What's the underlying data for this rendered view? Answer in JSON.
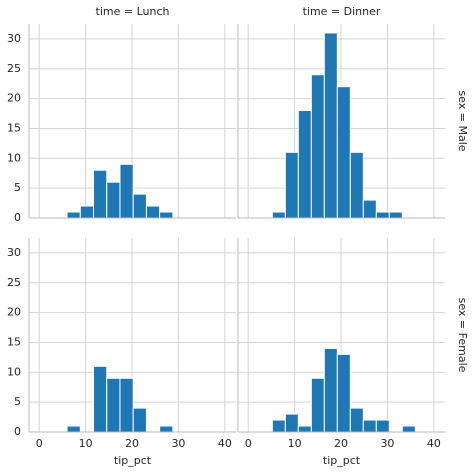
{
  "chart_data": [
    {
      "type": "histogram",
      "title": "time = Lunch",
      "color": "#1f77b4",
      "bins": [
        6.0,
        8.85,
        11.7,
        14.55,
        17.4,
        20.25,
        23.1,
        25.95,
        28.8
      ],
      "values": [
        1,
        2,
        8,
        6,
        9,
        4,
        2,
        1
      ],
      "xlim": [
        -2.2,
        42.4
      ],
      "xticks": [
        0,
        10,
        20,
        30,
        40
      ],
      "ylim": [
        0,
        32.5
      ],
      "yticks": [
        0,
        5,
        10,
        15,
        20,
        25,
        30
      ],
      "grid": true
    },
    {
      "type": "histogram",
      "title": "time = Dinner",
      "row_label": "sex = Male",
      "color": "#1f77b4",
      "bins": [
        5.2,
        8.0,
        10.8,
        13.6,
        16.4,
        19.2,
        22.0,
        24.8,
        27.6,
        30.4,
        33.2
      ],
      "values": [
        1,
        11,
        18,
        24,
        31,
        22,
        11,
        3,
        1,
        1
      ],
      "xlim": [
        -2.2,
        42.4
      ],
      "xticks": [
        0,
        10,
        20,
        30,
        40
      ],
      "ylim": [
        0,
        32.5
      ],
      "yticks": [
        0,
        5,
        10,
        15,
        20,
        25,
        30
      ],
      "grid": true
    },
    {
      "type": "histogram",
      "xlabel": "tip_pct",
      "color": "#1f77b4",
      "bins": [
        6.0,
        8.85,
        11.7,
        14.55,
        17.4,
        20.25,
        23.1,
        25.95,
        28.8
      ],
      "values": [
        1,
        0,
        11,
        9,
        9,
        4,
        0,
        1
      ],
      "xlim": [
        -2.2,
        42.4
      ],
      "xticks": [
        0,
        10,
        20,
        30,
        40
      ],
      "ylim": [
        0,
        32.5
      ],
      "yticks": [
        0,
        5,
        10,
        15,
        20,
        25,
        30
      ],
      "grid": true
    },
    {
      "type": "histogram",
      "xlabel": "tip_pct",
      "row_label": "sex = Female",
      "color": "#1f77b4",
      "bins": [
        5.2,
        8.0,
        10.8,
        13.6,
        16.4,
        19.2,
        22.0,
        24.8,
        27.6,
        30.4,
        33.2,
        36.0
      ],
      "values": [
        2,
        3,
        1,
        9,
        14,
        13,
        4,
        2,
        2,
        0,
        1
      ],
      "xlim": [
        -2.2,
        42.4
      ],
      "xticks": [
        0,
        10,
        20,
        30,
        40
      ],
      "ylim": [
        0,
        32.5
      ],
      "yticks": [
        0,
        5,
        10,
        15,
        20,
        25,
        30
      ],
      "grid": true
    }
  ]
}
